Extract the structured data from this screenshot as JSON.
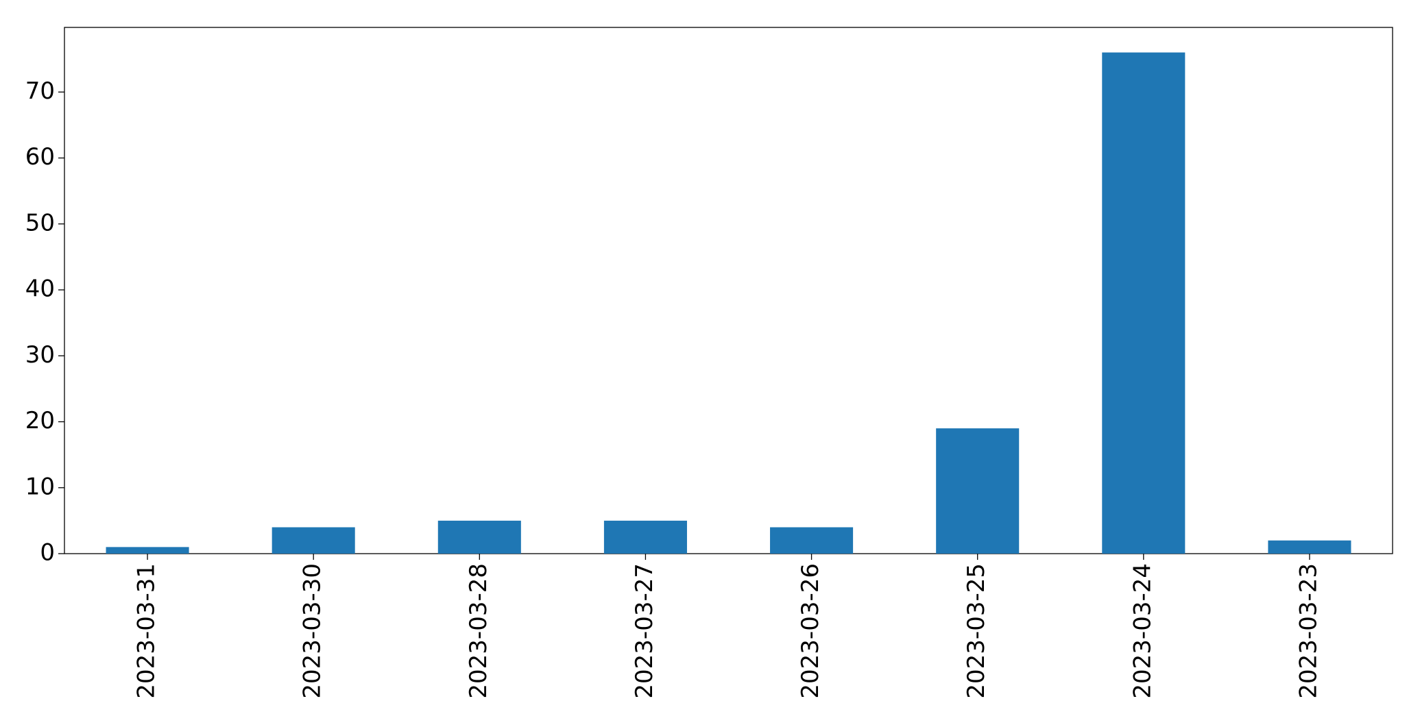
{
  "chart_data": {
    "type": "bar",
    "categories": [
      "2023-03-31",
      "2023-03-30",
      "2023-03-28",
      "2023-03-27",
      "2023-03-26",
      "2023-03-25",
      "2023-03-24",
      "2023-03-23"
    ],
    "values": [
      1,
      4,
      5,
      5,
      4,
      19,
      76,
      2
    ],
    "color": "#1f77b4",
    "ylim": [
      0,
      79.8
    ],
    "yticks": [
      0,
      10,
      20,
      30,
      40,
      50,
      60,
      70
    ],
    "grid": false
  }
}
